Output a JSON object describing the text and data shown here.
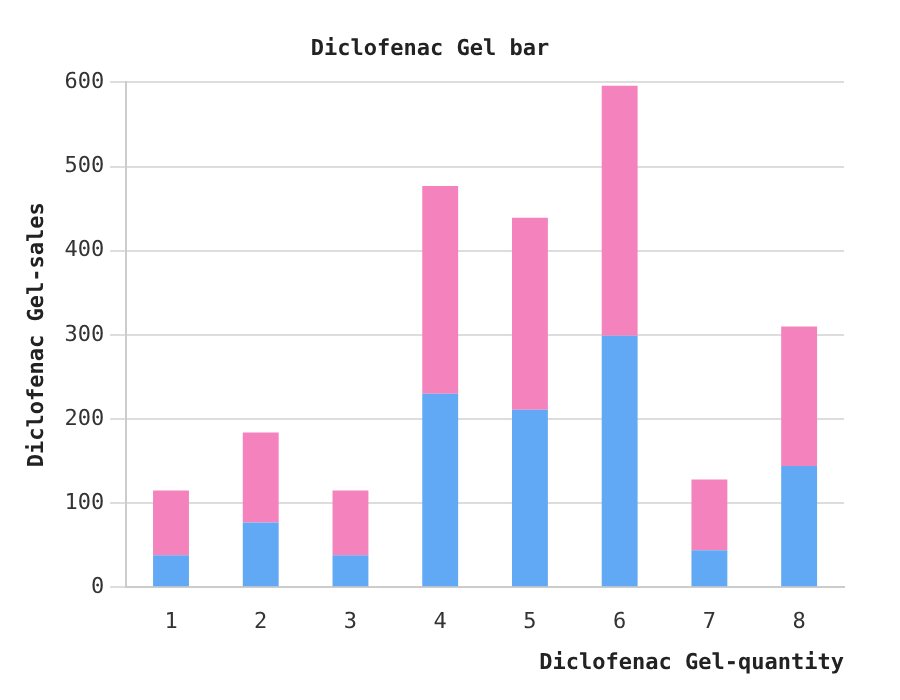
{
  "chart_data": {
    "type": "bar",
    "title": "Diclofenac Gel bar",
    "xlabel": "Diclofenac Gel-quantity",
    "ylabel": "Diclofenac Gel-sales",
    "categories": [
      "1",
      "2",
      "3",
      "4",
      "5",
      "6",
      "7",
      "8"
    ],
    "stacked": true,
    "series": [
      {
        "color": "#62a9f5",
        "values": [
          38,
          77,
          38,
          230,
          211,
          299,
          44,
          144
        ]
      },
      {
        "color": "#f483bd",
        "values": [
          77,
          107,
          77,
          247,
          228,
          297,
          84,
          166
        ]
      }
    ],
    "ylim": [
      0,
      600
    ],
    "yticks": [
      0,
      100,
      200,
      300,
      400,
      500,
      600
    ],
    "grid": "y",
    "legend": false
  }
}
